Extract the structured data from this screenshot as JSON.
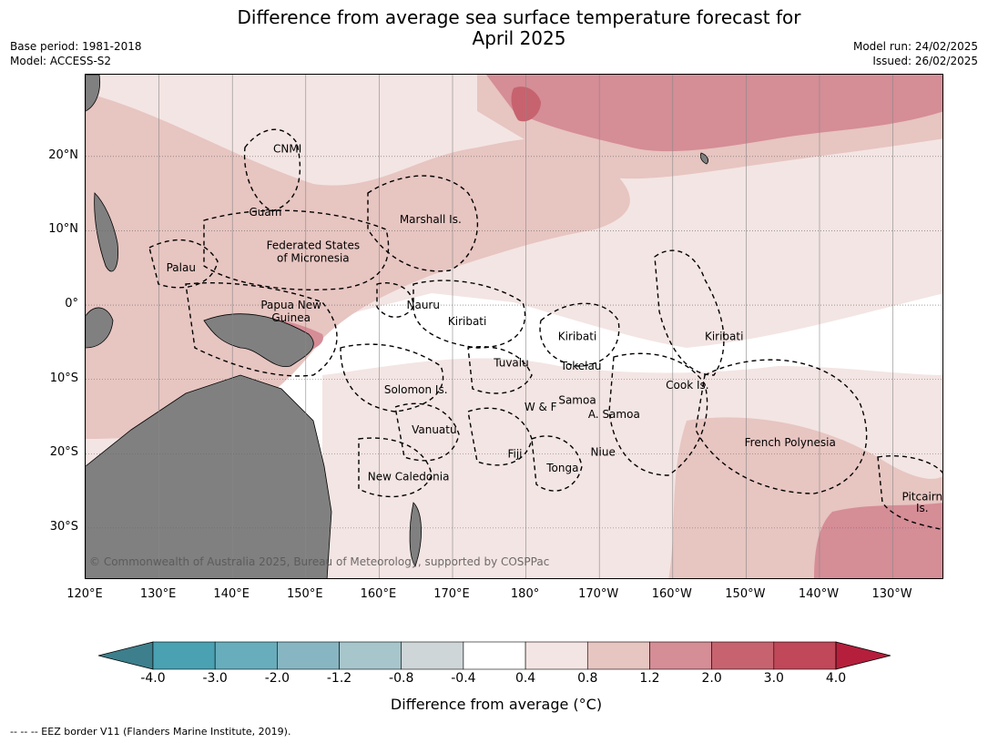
{
  "title_line1": "Difference from average sea surface temperature forecast for",
  "title_line2": "April 2025",
  "meta_left": [
    "Base period: 1981-2018",
    "Model: ACCESS-S2"
  ],
  "meta_right": [
    "Model run: 24/02/2025",
    "Issued: 26/02/2025"
  ],
  "lat_ticks": [
    {
      "label": "20°N",
      "value": 20
    },
    {
      "label": "10°N",
      "value": 10
    },
    {
      "label": "0°",
      "value": 0
    },
    {
      "label": "10°S",
      "value": -10
    },
    {
      "label": "20°S",
      "value": -20
    },
    {
      "label": "30°S",
      "value": -30
    }
  ],
  "lon_ticks": [
    {
      "label": "120°E",
      "value": 120
    },
    {
      "label": "130°E",
      "value": 130
    },
    {
      "label": "140°E",
      "value": 140
    },
    {
      "label": "150°E",
      "value": 150
    },
    {
      "label": "160°E",
      "value": 160
    },
    {
      "label": "170°E",
      "value": 170
    },
    {
      "label": "180°",
      "value": 180
    },
    {
      "label": "170°W",
      "value": 190
    },
    {
      "label": "160°W",
      "value": 200
    },
    {
      "label": "150°W",
      "value": 210
    },
    {
      "label": "140°W",
      "value": 220
    },
    {
      "label": "130°W",
      "value": 230
    }
  ],
  "map_extent": {
    "lon_min": 120,
    "lon_max": 237,
    "lat_min": -37,
    "lat_max": 31
  },
  "countries": [
    {
      "name": "CNMI",
      "lon": 147.5,
      "lat": 21
    },
    {
      "name": "Guam",
      "lon": 144.5,
      "lat": 12.5
    },
    {
      "name": "Palau",
      "lon": 133,
      "lat": 5
    },
    {
      "name": "Federated States",
      "lon": 151,
      "lat": 8
    },
    {
      "name": "of Micronesia",
      "lon": 151,
      "lat": 6.3
    },
    {
      "name": "Marshall Is.",
      "lon": 167,
      "lat": 11.5
    },
    {
      "name": "Papua New",
      "lon": 148,
      "lat": 0
    },
    {
      "name": "Guinea",
      "lon": 148,
      "lat": -1.7
    },
    {
      "name": "Nauru",
      "lon": 166,
      "lat": 0
    },
    {
      "name": "Kiribati",
      "lon": 172,
      "lat": -2.2
    },
    {
      "name": "Kiribati",
      "lon": 187,
      "lat": -4.2
    },
    {
      "name": "Kiribati",
      "lon": 207,
      "lat": -4.2
    },
    {
      "name": "Tuvalu",
      "lon": 178,
      "lat": -7.8
    },
    {
      "name": "Tokelau",
      "lon": 187.5,
      "lat": -8.2
    },
    {
      "name": "Solomon Is.",
      "lon": 165,
      "lat": -11.4
    },
    {
      "name": "Cook Is.",
      "lon": 202,
      "lat": -10.8
    },
    {
      "name": "Samoa",
      "lon": 187,
      "lat": -12.8
    },
    {
      "name": "W & F",
      "lon": 182,
      "lat": -13.7
    },
    {
      "name": "A. Samoa",
      "lon": 192,
      "lat": -14.7
    },
    {
      "name": "Vanuatu",
      "lon": 167.5,
      "lat": -16.8
    },
    {
      "name": "Fiji",
      "lon": 178.5,
      "lat": -20
    },
    {
      "name": "Niue",
      "lon": 190.5,
      "lat": -19.8
    },
    {
      "name": "French Polynesia",
      "lon": 216,
      "lat": -18.5
    },
    {
      "name": "Tonga",
      "lon": 185,
      "lat": -21.9
    },
    {
      "name": "New Caledonia",
      "lon": 164,
      "lat": -23.1
    },
    {
      "name": "Pitcairn",
      "lon": 234,
      "lat": -25.8
    },
    {
      "name": "Is.",
      "lon": 234,
      "lat": -27.3
    }
  ],
  "copyright": "© Commonwealth of Australia 2025, Bureau of Meteorology, supported by COSPPac",
  "colorbar": {
    "title": "Difference from average (°C)",
    "bins": [
      {
        "color": "#3d7f8c"
      },
      {
        "color": "#49a1b2"
      },
      {
        "color": "#68adbc"
      },
      {
        "color": "#87b6c2"
      },
      {
        "color": "#a7c6cb"
      },
      {
        "color": "#cfd6d8"
      },
      {
        "color": "#ffffff"
      },
      {
        "color": "#f3e5e3"
      },
      {
        "color": "#e7c5c1"
      },
      {
        "color": "#d58d96"
      },
      {
        "color": "#c6636f"
      },
      {
        "color": "#c04858"
      },
      {
        "color": "#b51f3c"
      }
    ],
    "labels": [
      "-4.0",
      "-3.0",
      "-2.0",
      "-1.2",
      "-0.8",
      "-0.4",
      "0.4",
      "0.8",
      "1.2",
      "2.0",
      "3.0",
      "4.0"
    ]
  },
  "footer": "--  --  -- EEZ border V11 (Flanders Marine Institute, 2019)."
}
